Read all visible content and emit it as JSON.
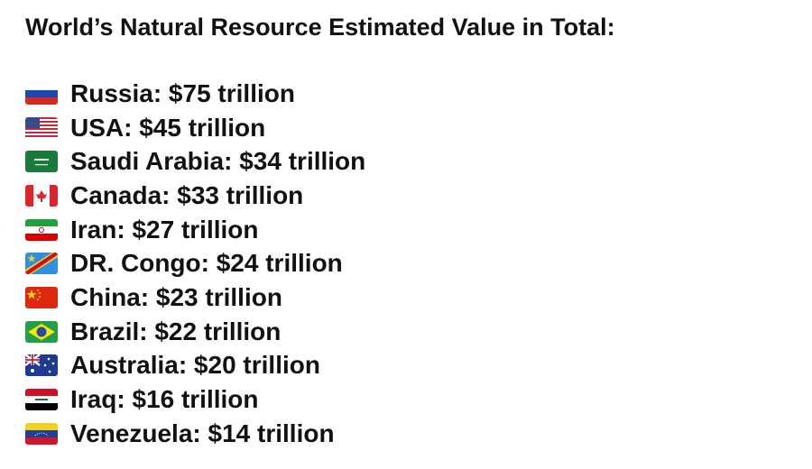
{
  "header": {
    "title": "World’s Natural Resource Estimated Value in Total:"
  },
  "items": [
    {
      "text": "Russia: $75 trillion"
    },
    {
      "text": "USA: $45 trillion"
    },
    {
      "text": "Saudi Arabia: $34 trillion"
    },
    {
      "text": "Canada: $33 trillion"
    },
    {
      "text": "Iran: $27 trillion"
    },
    {
      "text": "DR. Congo: $24 trillion"
    },
    {
      "text": "China: $23 trillion"
    },
    {
      "text": "Brazil: $22 trillion"
    },
    {
      "text": "Australia: $20 trillion"
    },
    {
      "text": "Iraq: $16 trillion"
    },
    {
      "text": "Venezuela: $14 trillion"
    }
  ]
}
